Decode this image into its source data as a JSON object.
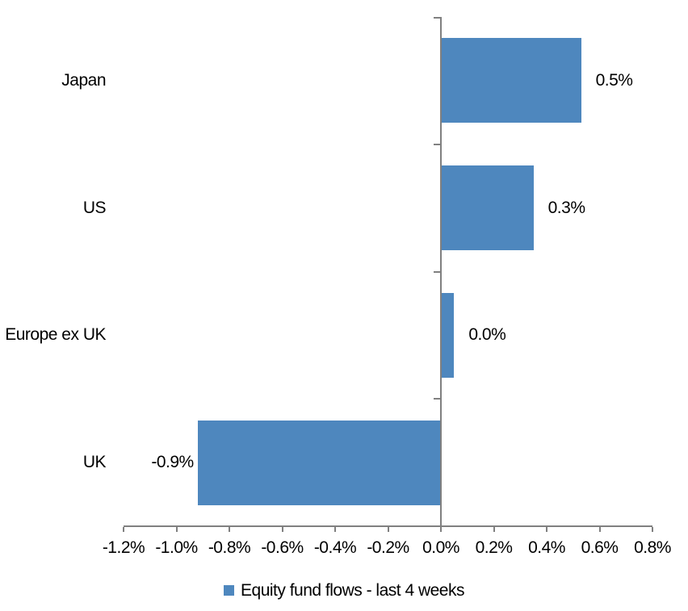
{
  "chart_data": {
    "type": "bar",
    "orientation": "horizontal",
    "categories": [
      "Japan",
      "US",
      "Europe ex UK",
      "UK"
    ],
    "values": [
      0.5,
      0.3,
      0.0,
      -0.9
    ],
    "values_precise_pct": [
      0.53,
      0.35,
      0.05,
      -0.92
    ],
    "data_labels": [
      "0.5%",
      "0.3%",
      "0.0%",
      "-0.9%"
    ],
    "series_name": "Equity fund flows - last 4 weeks",
    "legend_position": "bottom",
    "xlim": [
      -1.2,
      0.8
    ],
    "xtick_step": 0.2,
    "xtick_labels": [
      "-1.2%",
      "-1.0%",
      "-0.8%",
      "-0.6%",
      "-0.4%",
      "-0.2%",
      "0.0%",
      "0.2%",
      "0.4%",
      "0.6%",
      "0.8%"
    ],
    "grid": false,
    "bar_color": "#4E87BE",
    "axis_color": "#808080",
    "text_color": "#000000"
  }
}
